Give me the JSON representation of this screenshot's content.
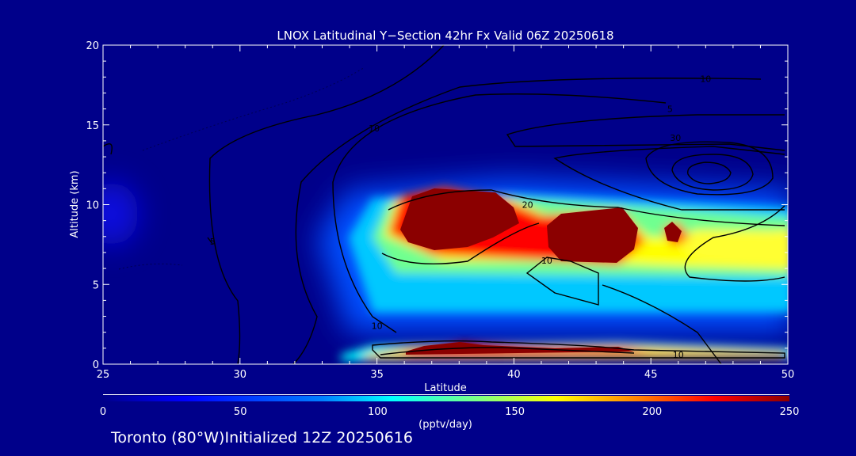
{
  "chart_data": {
    "type": "heatmap",
    "title": "LNOX Latitudinal Y−Section 42hr  Fx Valid 06Z 20250618",
    "xlabel": "Latitude",
    "ylabel": "Altitude (km)",
    "xlim": [
      25,
      50
    ],
    "ylim": [
      0,
      20
    ],
    "xticks": [
      "25",
      "30",
      "35",
      "40",
      "45",
      "50"
    ],
    "yticks": [
      "0",
      "5",
      "10",
      "15",
      "20"
    ],
    "colorbar": {
      "label": "(pptv/day)",
      "min": 0,
      "max": 250,
      "ticks": [
        "0",
        "50",
        "100",
        "150",
        "200",
        "250"
      ],
      "colors": [
        "#00008a",
        "#0000ff",
        "#0080ff",
        "#00ffff",
        "#80ff80",
        "#ffff00",
        "#ff8000",
        "#ff0000",
        "#8b0000"
      ]
    },
    "grid": false,
    "lnox_maxima": [
      {
        "lat": 37.5,
        "alt": 8.7,
        "value": 250
      },
      {
        "lat": 42.5,
        "alt": 7.8,
        "value": 250
      },
      {
        "lat": 38.5,
        "alt": 0.8,
        "value": 240
      },
      {
        "lat": 43.5,
        "alt": 0.7,
        "value": 220
      },
      {
        "lat": 45.8,
        "alt": 8.4,
        "value": 230
      },
      {
        "lat": 50.0,
        "alt": 7.5,
        "value": 150
      }
    ],
    "contour_labels": [
      {
        "text": "10",
        "lat": 47.0,
        "alt": 17.9
      },
      {
        "text": "10",
        "lat": 34.9,
        "alt": 14.8
      },
      {
        "text": "5",
        "lat": 45.7,
        "alt": 16.0
      },
      {
        "text": "30",
        "lat": 45.9,
        "alt": 14.2
      },
      {
        "text": "20",
        "lat": 40.5,
        "alt": 10.0
      },
      {
        "text": "10",
        "lat": 41.2,
        "alt": 6.5
      },
      {
        "text": "10",
        "lat": 35.0,
        "alt": 2.4
      },
      {
        "text": "10",
        "lat": 46.0,
        "alt": 0.6
      },
      {
        "text": "5",
        "lat": 29.0,
        "alt": 7.7
      }
    ]
  },
  "footer": {
    "caption": "Toronto (80°W)Initialized 12Z 20250616"
  }
}
